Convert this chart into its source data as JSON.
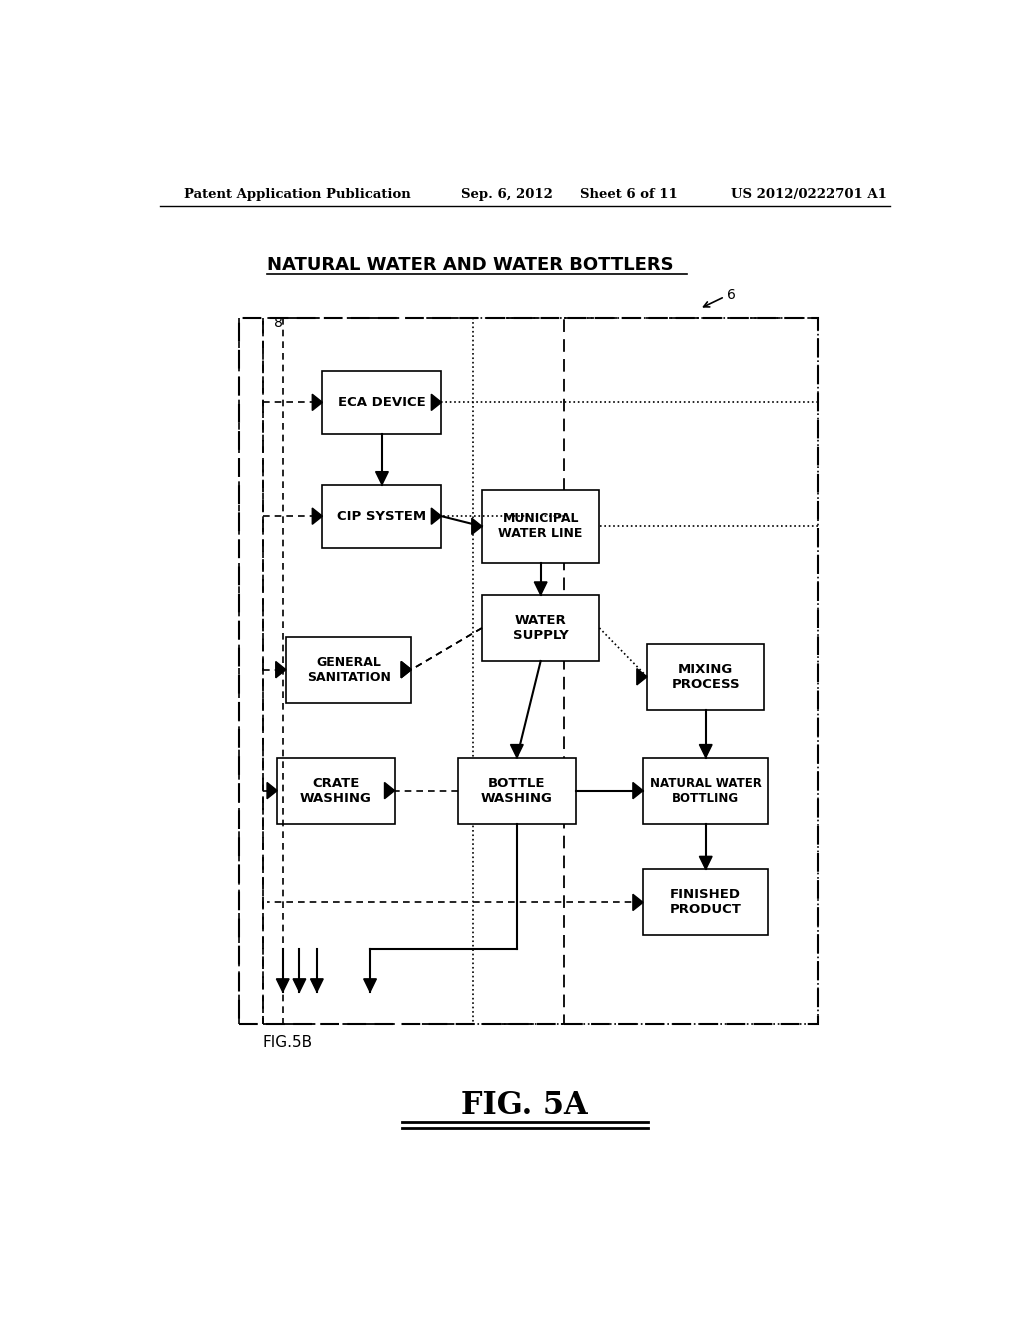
{
  "header_left": "Patent Application Publication",
  "header_mid1": "Sep. 6, 2012",
  "header_mid2": "Sheet 6 of 11",
  "header_right": "US 2012/0222701 A1",
  "title": "NATURAL WATER AND WATER BOTTLERS",
  "fig_label": "FIG. 5A",
  "fig5b_label": "FIG.5B",
  "ref_6": "6",
  "ref_8": "8",
  "background_color": "#ffffff"
}
